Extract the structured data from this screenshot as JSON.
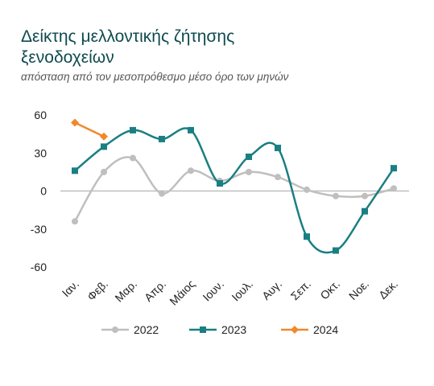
{
  "chart_data": {
    "type": "line",
    "title": "Δείκτης μελλοντικής ζήτησης ξενοδοχείων",
    "subtitle": "απόσταση από τον μεσοπρόθεσμο μέσο όρο των μηνών",
    "categories": [
      "Ιαν.",
      "Φεβ.",
      "Μαρ.",
      "Απρ.",
      "Μάιος",
      "Ιουν.",
      "Ιουλ.",
      "Αυγ.",
      "Σεπ.",
      "Οκτ.",
      "Νοε.",
      "Δεκ."
    ],
    "series": [
      {
        "name": "2022",
        "color": "#bfbfbf",
        "marker": "circle",
        "values": [
          -24,
          15,
          26,
          -2,
          16,
          8,
          15,
          11,
          1,
          -4,
          -4,
          2
        ]
      },
      {
        "name": "2023",
        "color": "#1a7f82",
        "marker": "square",
        "values": [
          16,
          35,
          48,
          41,
          48,
          6,
          27,
          34,
          -36,
          -47,
          -16,
          18
        ]
      },
      {
        "name": "2024",
        "color": "#f0892c",
        "marker": "diamond",
        "values": [
          54,
          43,
          null,
          null,
          null,
          null,
          null,
          null,
          null,
          null,
          null,
          null
        ]
      }
    ],
    "ylim": [
      -60,
      60
    ],
    "yticks": [
      60,
      30,
      0,
      -30,
      -60
    ],
    "legend": "bottom",
    "smooth": true
  }
}
